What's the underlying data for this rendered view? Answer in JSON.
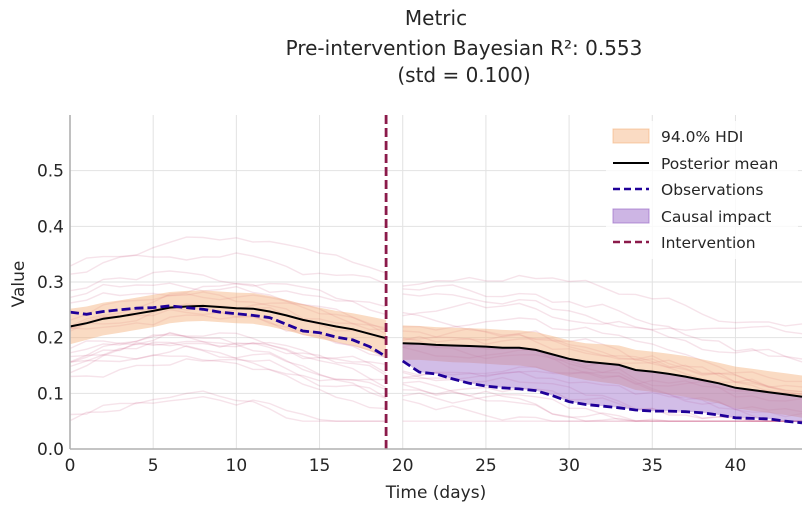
{
  "chart_data": {
    "type": "line",
    "title_line1": "Metric",
    "title_line2": "Pre-intervention Bayesian R²: 0.553",
    "title_line3": "(std = 0.100)",
    "xlabel": "Time (days)",
    "ylabel": "Value",
    "xlim": [
      0,
      44
    ],
    "ylim": [
      0,
      0.6
    ],
    "xticks": [
      "0",
      "5",
      "10",
      "15",
      "20",
      "25",
      "30",
      "35",
      "40"
    ],
    "yticks": [
      "0.0",
      "0.1",
      "0.2",
      "0.3",
      "0.4",
      "0.5"
    ],
    "grid": true,
    "legend_position": "top-right",
    "intervention_x": 19,
    "colors": {
      "hdi": "#f5b07a",
      "posterior_mean": "#000000",
      "observations": "#1f0099",
      "causal_impact": "#9b6cc9",
      "intervention": "#8b1a4a",
      "samples": "#c9527a"
    },
    "legend": [
      {
        "key": "hdi",
        "label": "94.0% HDI"
      },
      {
        "key": "posterior_mean",
        "label": "Posterior mean"
      },
      {
        "key": "observations",
        "label": "Observations"
      },
      {
        "key": "causal_impact",
        "label": "Causal impact"
      },
      {
        "key": "intervention",
        "label": "Intervention"
      }
    ],
    "pre": {
      "x": [
        0,
        1,
        2,
        3,
        4,
        5,
        6,
        7,
        8,
        9,
        10,
        11,
        12,
        13,
        14,
        15,
        16,
        17,
        18,
        19
      ],
      "posterior_mean": [
        0.22,
        0.226,
        0.234,
        0.238,
        0.243,
        0.248,
        0.254,
        0.256,
        0.257,
        0.255,
        0.253,
        0.252,
        0.247,
        0.24,
        0.232,
        0.226,
        0.22,
        0.215,
        0.207,
        0.199
      ],
      "hdi_lower": [
        0.188,
        0.196,
        0.204,
        0.209,
        0.214,
        0.219,
        0.226,
        0.229,
        0.23,
        0.228,
        0.226,
        0.225,
        0.22,
        0.213,
        0.205,
        0.198,
        0.192,
        0.186,
        0.176,
        0.165
      ],
      "hdi_upper": [
        0.252,
        0.256,
        0.263,
        0.267,
        0.272,
        0.277,
        0.282,
        0.284,
        0.285,
        0.283,
        0.281,
        0.28,
        0.275,
        0.268,
        0.26,
        0.254,
        0.248,
        0.244,
        0.238,
        0.232
      ],
      "observations": [
        0.246,
        0.242,
        0.247,
        0.25,
        0.253,
        0.254,
        0.257,
        0.254,
        0.251,
        0.246,
        0.243,
        0.24,
        0.236,
        0.224,
        0.212,
        0.209,
        0.201,
        0.196,
        0.184,
        0.166
      ]
    },
    "post": {
      "x": [
        20,
        21,
        22,
        23,
        24,
        25,
        26,
        27,
        28,
        29,
        30,
        31,
        32,
        33,
        34,
        35,
        36,
        37,
        38,
        39,
        40,
        41,
        42,
        43,
        44
      ],
      "posterior_mean": [
        0.19,
        0.189,
        0.187,
        0.186,
        0.185,
        0.184,
        0.182,
        0.182,
        0.178,
        0.17,
        0.162,
        0.157,
        0.154,
        0.151,
        0.142,
        0.139,
        0.135,
        0.13,
        0.124,
        0.118,
        0.11,
        0.106,
        0.102,
        0.098,
        0.094
      ],
      "hdi_lower": [
        0.16,
        0.16,
        0.158,
        0.156,
        0.155,
        0.153,
        0.151,
        0.15,
        0.146,
        0.138,
        0.13,
        0.124,
        0.12,
        0.116,
        0.106,
        0.103,
        0.098,
        0.094,
        0.088,
        0.082,
        0.073,
        0.069,
        0.065,
        0.061,
        0.056
      ],
      "hdi_upper": [
        0.222,
        0.221,
        0.219,
        0.218,
        0.217,
        0.216,
        0.214,
        0.213,
        0.21,
        0.203,
        0.195,
        0.19,
        0.188,
        0.186,
        0.178,
        0.175,
        0.171,
        0.167,
        0.161,
        0.155,
        0.148,
        0.144,
        0.14,
        0.136,
        0.132
      ],
      "observations": [
        0.158,
        0.138,
        0.135,
        0.126,
        0.118,
        0.113,
        0.11,
        0.108,
        0.105,
        0.096,
        0.085,
        0.08,
        0.077,
        0.074,
        0.07,
        0.068,
        0.068,
        0.067,
        0.065,
        0.061,
        0.056,
        0.055,
        0.054,
        0.05,
        0.047
      ]
    }
  }
}
